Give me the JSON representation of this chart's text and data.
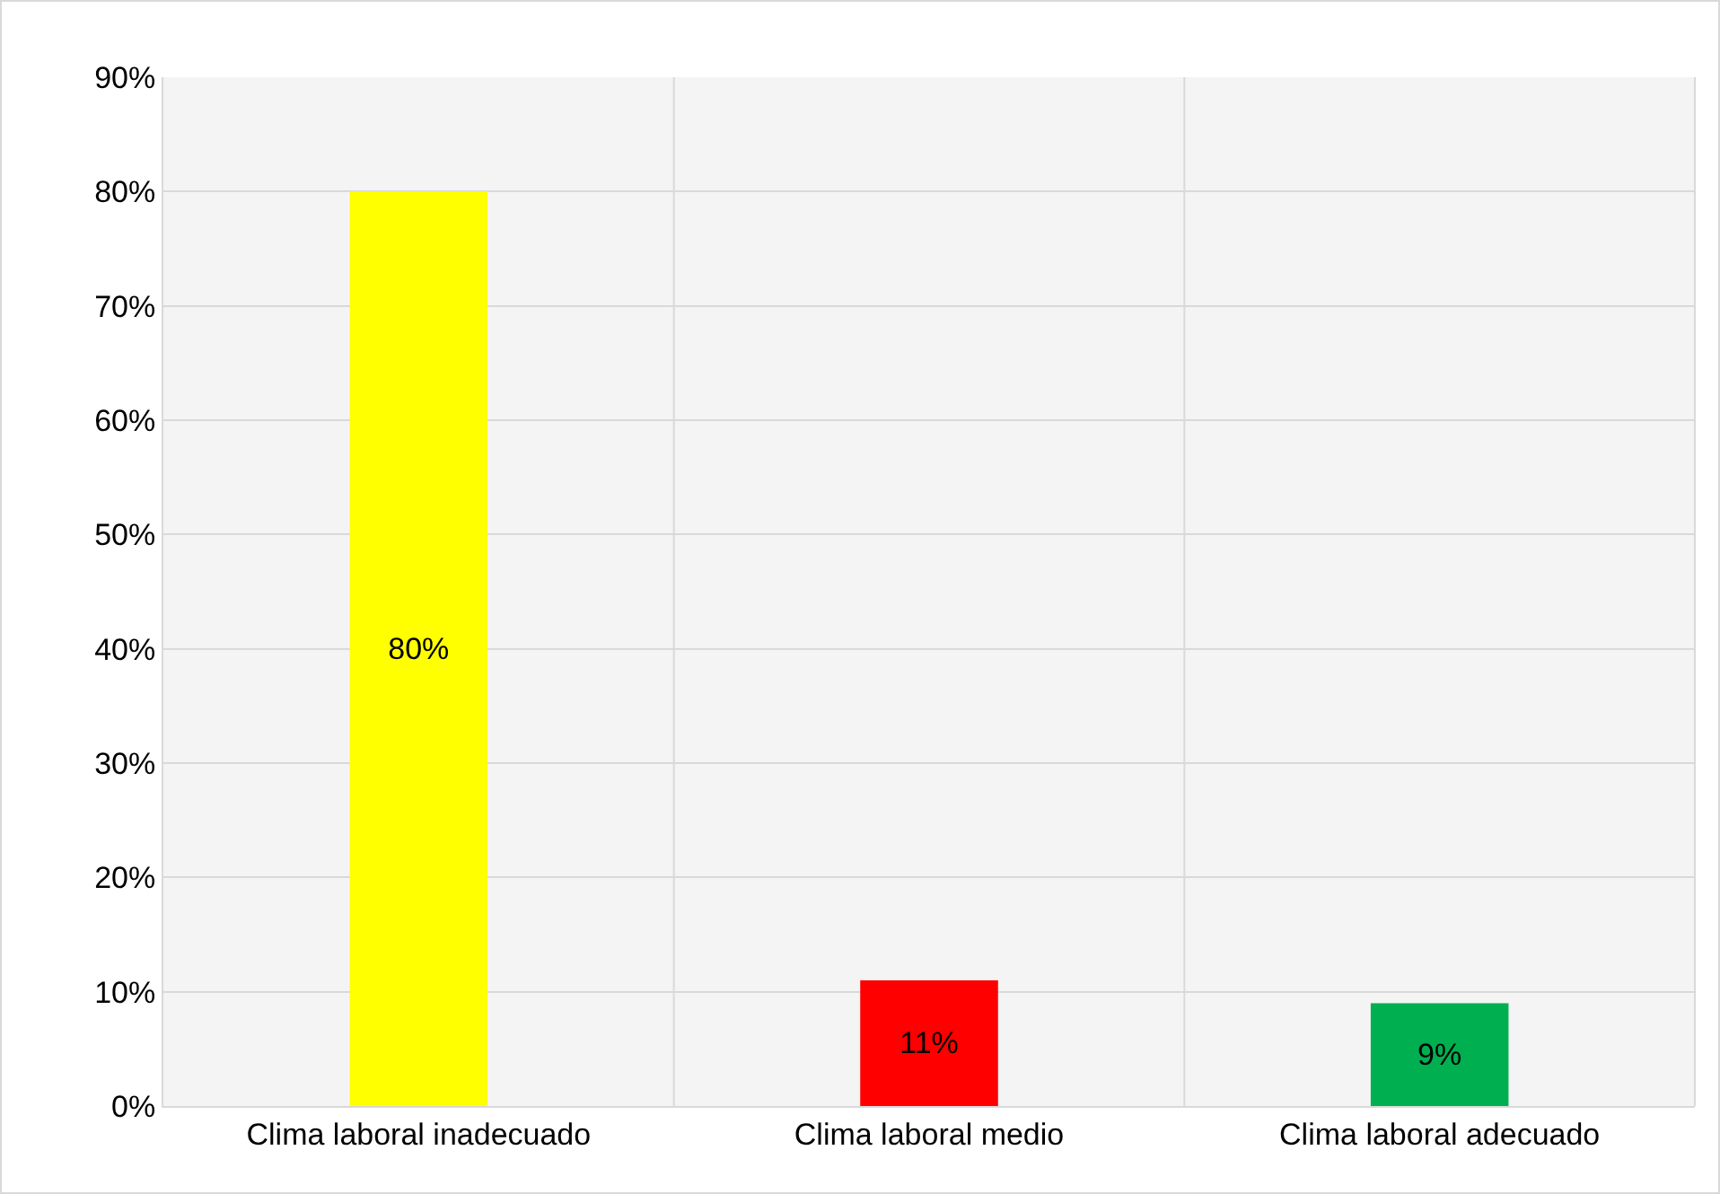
{
  "chart_data": {
    "type": "bar",
    "categories": [
      "Clima laboral inadecuado",
      "Clima laboral medio",
      "Clima laboral adecuado"
    ],
    "values": [
      80,
      11,
      9
    ],
    "colors": [
      "#ffff00",
      "#ff0000",
      "#00b050"
    ],
    "value_labels": [
      "80%",
      "11%",
      "9%"
    ],
    "ylim": [
      0,
      90
    ],
    "yticks": [
      {
        "value": 0,
        "label": "0%"
      },
      {
        "value": 10,
        "label": "10%"
      },
      {
        "value": 20,
        "label": "20%"
      },
      {
        "value": 30,
        "label": "30%"
      },
      {
        "value": 40,
        "label": "40%"
      },
      {
        "value": 50,
        "label": "50%"
      },
      {
        "value": 60,
        "label": "60%"
      },
      {
        "value": 70,
        "label": "70%"
      },
      {
        "value": 80,
        "label": "80%"
      },
      {
        "value": 90,
        "label": "90%"
      }
    ],
    "grid": true
  }
}
